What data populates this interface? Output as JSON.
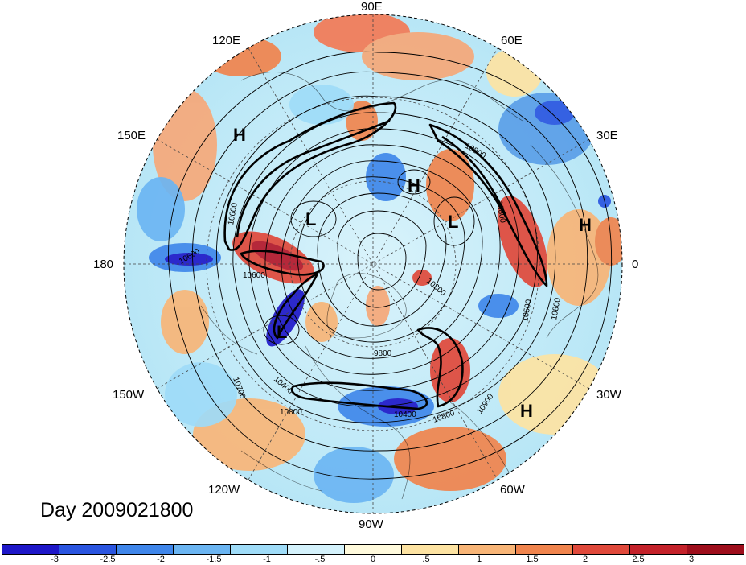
{
  "title": "Day 2009021800",
  "longitude_labels": {
    "lon_90e": "90E",
    "lon_60e": "60E",
    "lon_30e": "30E",
    "lon_0": "0",
    "lon_30w": "30W",
    "lon_60w": "60W",
    "lon_90w": "90W",
    "lon_120w": "120W",
    "lon_150w": "150W",
    "lon_180": "180",
    "lon_150e": "150E",
    "lon_120e": "120E"
  },
  "pressure_centers": [
    "H",
    "H",
    "L",
    "L",
    "L",
    "H",
    "H"
  ],
  "contour_labels": [
    "10800",
    "10600",
    "10600",
    "10700",
    "10400",
    "9800",
    "10300",
    "10500",
    "10800",
    "10900",
    "10800",
    "10800",
    "10600",
    "10800",
    "10400"
  ],
  "colorbar": {
    "colors": [
      "#1e17c8",
      "#2a55e0",
      "#3f86ea",
      "#6bb5f2",
      "#9fdcf8",
      "#d4f2fc",
      "#fffadc",
      "#fde3a2",
      "#f8b577",
      "#f0844d",
      "#e0493b",
      "#c4222a",
      "#9e0e1c"
    ],
    "tick_labels": [
      "-3",
      "-2.5",
      "-2",
      "-1.5",
      "-1",
      "-.5",
      "0",
      ".5",
      "1",
      "1.5",
      "2",
      "2.5",
      "3"
    ]
  }
}
